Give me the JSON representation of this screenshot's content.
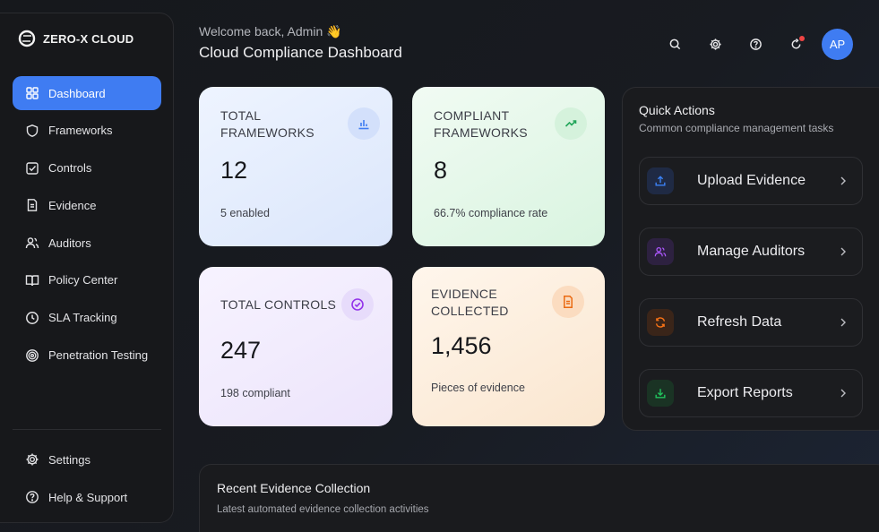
{
  "brand": {
    "name": "ZERO-X CLOUD"
  },
  "sidebar": {
    "items": [
      {
        "label": "Dashboard",
        "icon": "dashboard-icon",
        "active": true
      },
      {
        "label": "Frameworks",
        "icon": "shield-icon"
      },
      {
        "label": "Controls",
        "icon": "checkbox-icon"
      },
      {
        "label": "Evidence",
        "icon": "document-icon"
      },
      {
        "label": "Auditors",
        "icon": "users-icon"
      },
      {
        "label": "Policy Center",
        "icon": "book-icon"
      },
      {
        "label": "SLA Tracking",
        "icon": "clock-icon"
      },
      {
        "label": "Penetration Testing",
        "icon": "target-icon"
      }
    ],
    "bottom": [
      {
        "label": "Settings",
        "icon": "gear-icon"
      },
      {
        "label": "Help & Support",
        "icon": "help-circle-icon"
      }
    ]
  },
  "header": {
    "welcome": "Welcome back, Admin 👋",
    "title": "Cloud Compliance Dashboard",
    "avatar_initials": "AP"
  },
  "stats": {
    "total_frameworks": {
      "label": "TOTAL FRAMEWORKS",
      "value": "12",
      "sub": "5 enabled"
    },
    "compliant_frameworks": {
      "label": "COMPLIANT FRAMEWORKS",
      "value": "8",
      "sub": "66.7% compliance rate"
    },
    "total_controls": {
      "label": "TOTAL CONTROLS",
      "value": "247",
      "sub": "198 compliant"
    },
    "evidence_collected": {
      "label": "EVIDENCE COLLECTED",
      "value": "1,456",
      "sub": "Pieces of evidence"
    }
  },
  "quick_actions": {
    "title": "Quick Actions",
    "subtitle": "Common compliance management tasks",
    "items": [
      {
        "label": "Upload Evidence",
        "icon": "upload-icon",
        "color": "#3b82f6"
      },
      {
        "label": "Manage Auditors",
        "icon": "users-icon",
        "color": "#a855f7"
      },
      {
        "label": "Refresh Data",
        "icon": "refresh-icon",
        "color": "#f97316"
      },
      {
        "label": "Export Reports",
        "icon": "download-icon",
        "color": "#22c55e"
      }
    ]
  },
  "recent": {
    "title": "Recent Evidence Collection",
    "subtitle": "Latest automated evidence collection activities"
  },
  "colors": {
    "accent": "#3f7cf2",
    "notification": "#ef4444"
  }
}
